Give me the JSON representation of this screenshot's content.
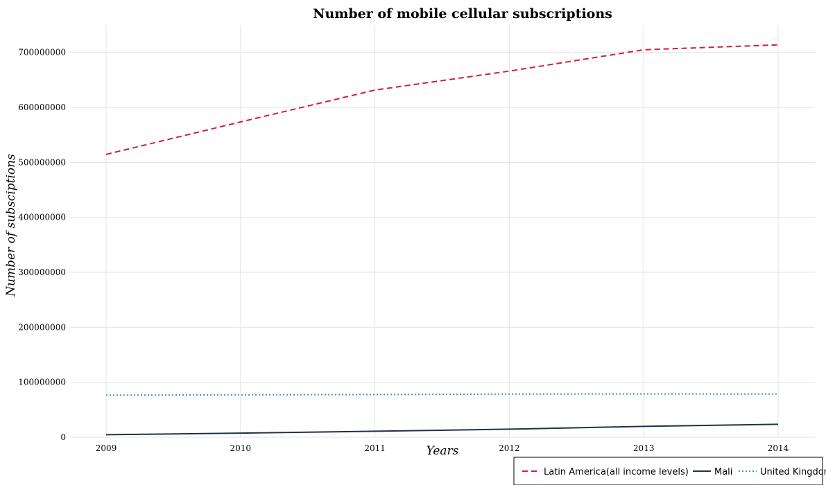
{
  "chart_data": {
    "type": "line",
    "title": "Number of mobile cellular subscriptions",
    "xlabel": "Years",
    "ylabel": "Number of subsciptions",
    "x": [
      2009,
      2010,
      2011,
      2012,
      2013,
      2014
    ],
    "x_tick_labels": [
      "2009",
      "2010",
      "2011",
      "2012",
      "2013",
      "2014"
    ],
    "ylim": [
      0,
      750000000
    ],
    "y_ticks": [
      0,
      100000000,
      200000000,
      300000000,
      400000000,
      500000000,
      600000000,
      700000000
    ],
    "y_tick_labels": [
      "0",
      "100000000",
      "200000000",
      "300000000",
      "400000000",
      "500000000",
      "600000000",
      "700000000"
    ],
    "grid": true,
    "legend_position": "bottom-right",
    "series": [
      {
        "name": "Latin America(all income levels)",
        "color": "#cc1f3f",
        "dash": "dashed",
        "values": [
          514500000,
          573500000,
          631500000,
          666000000,
          704800000,
          713800000
        ]
      },
      {
        "name": "Mali",
        "color": "#1f3245",
        "dash": "solid",
        "values": [
          4500000,
          7400000,
          10800000,
          14600000,
          19700000,
          23400000
        ]
      },
      {
        "name": "United Kingdom",
        "color": "#4a90c8",
        "dash": "dotted",
        "values": [
          76500000,
          77100000,
          77500000,
          78400000,
          78700000,
          78400000
        ]
      }
    ]
  }
}
